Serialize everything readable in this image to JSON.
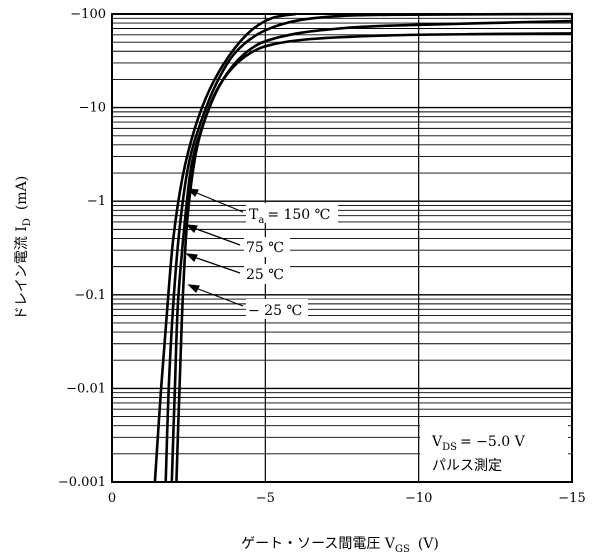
{
  "chart_data": {
    "type": "line",
    "xlabel": "ゲート・ソース間電圧 V",
    "xlabel_sub": "GS",
    "xlabel_unit": "(V)",
    "ylabel": "ドレイン電流 I",
    "ylabel_sub": "D",
    "ylabel_unit": "(mA)",
    "xlim": [
      0,
      -15
    ],
    "ylim": [
      0.001,
      100
    ],
    "yscale": "log",
    "grid": true,
    "x_tick_labels": [
      "0",
      "−5",
      "−10",
      "−15"
    ],
    "x_ticks": [
      0,
      -5,
      -10,
      -15
    ],
    "y_tick_labels": [
      "−0.001",
      "−0.01",
      "−0.1",
      "−1",
      "−10",
      "−100"
    ],
    "y_ticks": [
      0.001,
      0.01,
      0.1,
      1,
      10,
      100
    ],
    "series": [
      {
        "name": "Ta = 150 ℃",
        "x": [
          -1.4,
          -1.6,
          -1.8,
          -2.0,
          -2.3,
          -2.7,
          -3.2,
          -3.8,
          -4.5,
          -5.2,
          -6.0
        ],
        "y": [
          0.001,
          0.01,
          0.07,
          0.4,
          1.8,
          6,
          16,
          35,
          65,
          90,
          100
        ]
      },
      {
        "name": "75 ℃",
        "x": [
          -1.75,
          -1.85,
          -2.0,
          -2.2,
          -2.5,
          -2.9,
          -3.4,
          -4.0,
          -4.8,
          -5.8,
          -7.0,
          -9.0,
          -15.0
        ],
        "y": [
          0.001,
          0.01,
          0.08,
          0.5,
          2.5,
          7,
          18,
          38,
          62,
          82,
          93,
          98,
          100
        ]
      },
      {
        "name": "25 ℃",
        "x": [
          -1.95,
          -2.05,
          -2.15,
          -2.35,
          -2.6,
          -3.0,
          -3.5,
          -4.1,
          -4.8,
          -5.8,
          -7.0,
          -9.0,
          -15.0
        ],
        "y": [
          0.001,
          0.01,
          0.08,
          0.5,
          2.5,
          7,
          17,
          32,
          48,
          60,
          68,
          75,
          84
        ]
      },
      {
        "name": "−25 ℃",
        "x": [
          -2.1,
          -2.2,
          -2.3,
          -2.45,
          -2.7,
          -3.0,
          -3.4,
          -3.9,
          -4.5,
          -5.2,
          -6.5,
          -9.0,
          -12.0,
          -15.0
        ],
        "y": [
          0.001,
          0.01,
          0.08,
          0.6,
          2.8,
          7,
          15,
          26,
          38,
          47,
          54,
          59,
          61,
          62
        ]
      }
    ],
    "annotations": {
      "ta_prefix": "T",
      "ta_sub": "a",
      "ta_value": "= 150 ℃",
      "t75": "75 ℃",
      "t25": "25 ℃",
      "tm25": "− 25 ℃",
      "vds_prefix": "V",
      "vds_sub": "DS",
      "vds_value": "= −5.0 V",
      "pulse": "パルス測定"
    }
  }
}
